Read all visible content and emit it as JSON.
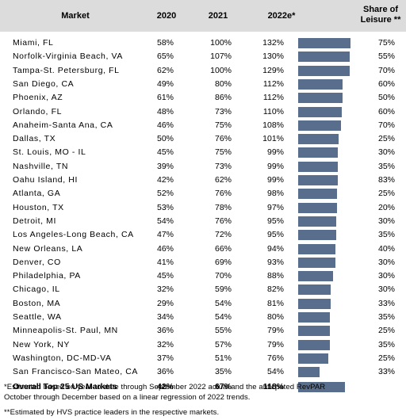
{
  "header": {
    "market": "Market",
    "y2020": "2020",
    "y2021": "2021",
    "y2022": "2022e*",
    "share_line1": "Share of",
    "share_line2": "Leisure **"
  },
  "colors": {
    "bar": "#596e8c",
    "header_bg": "#dcdcdc"
  },
  "chart_data": {
    "type": "table",
    "columns": [
      "Market",
      "2020",
      "2021",
      "2022e*",
      "Share of Leisure **"
    ],
    "bar_max": 132,
    "rows": [
      {
        "market": "Miami, FL",
        "y2020": "58%",
        "y2021": "100%",
        "y2022": "132%",
        "v2022": 132,
        "share": "75%"
      },
      {
        "market": "Norfolk-Virginia Beach, VA",
        "y2020": "65%",
        "y2021": "107%",
        "y2022": "130%",
        "v2022": 130,
        "share": "55%"
      },
      {
        "market": "Tampa-St. Petersburg, FL",
        "y2020": "62%",
        "y2021": "100%",
        "y2022": "129%",
        "v2022": 129,
        "share": "70%"
      },
      {
        "market": "San Diego, CA",
        "y2020": "49%",
        "y2021": "80%",
        "y2022": "112%",
        "v2022": 112,
        "share": "60%"
      },
      {
        "market": "Phoenix, AZ",
        "y2020": "61%",
        "y2021": "86%",
        "y2022": "112%",
        "v2022": 112,
        "share": "50%"
      },
      {
        "market": "Orlando, FL",
        "y2020": "48%",
        "y2021": "73%",
        "y2022": "110%",
        "v2022": 110,
        "share": "60%"
      },
      {
        "market": "Anaheim-Santa Ana, CA",
        "y2020": "46%",
        "y2021": "75%",
        "y2022": "108%",
        "v2022": 108,
        "share": "70%"
      },
      {
        "market": "Dallas, TX",
        "y2020": "50%",
        "y2021": "76%",
        "y2022": "101%",
        "v2022": 101,
        "share": "25%"
      },
      {
        "market": "St. Louis, MO - IL",
        "y2020": "45%",
        "y2021": "75%",
        "y2022": "99%",
        "v2022": 99,
        "share": "30%"
      },
      {
        "market": "Nashville, TN",
        "y2020": "39%",
        "y2021": "73%",
        "y2022": "99%",
        "v2022": 99,
        "share": "35%"
      },
      {
        "market": "Oahu Island, HI",
        "y2020": "42%",
        "y2021": "62%",
        "y2022": "99%",
        "v2022": 99,
        "share": "83%"
      },
      {
        "market": "Atlanta, GA",
        "y2020": "52%",
        "y2021": "76%",
        "y2022": "98%",
        "v2022": 98,
        "share": "25%"
      },
      {
        "market": "Houston, TX",
        "y2020": "53%",
        "y2021": "78%",
        "y2022": "97%",
        "v2022": 97,
        "share": "20%"
      },
      {
        "market": "Detroit, MI",
        "y2020": "54%",
        "y2021": "76%",
        "y2022": "95%",
        "v2022": 95,
        "share": "30%"
      },
      {
        "market": "Los Angeles-Long Beach, CA",
        "y2020": "47%",
        "y2021": "72%",
        "y2022": "95%",
        "v2022": 95,
        "share": "35%"
      },
      {
        "market": "New Orleans, LA",
        "y2020": "46%",
        "y2021": "66%",
        "y2022": "94%",
        "v2022": 94,
        "share": "40%"
      },
      {
        "market": "Denver, CO",
        "y2020": "41%",
        "y2021": "69%",
        "y2022": "93%",
        "v2022": 93,
        "share": "30%"
      },
      {
        "market": "Philadelphia, PA",
        "y2020": "45%",
        "y2021": "70%",
        "y2022": "88%",
        "v2022": 88,
        "share": "30%"
      },
      {
        "market": "Chicago, IL",
        "y2020": "32%",
        "y2021": "59%",
        "y2022": "82%",
        "v2022": 82,
        "share": "30%"
      },
      {
        "market": "Boston, MA",
        "y2020": "29%",
        "y2021": "54%",
        "y2022": "81%",
        "v2022": 81,
        "share": "33%"
      },
      {
        "market": "Seattle, WA",
        "y2020": "34%",
        "y2021": "54%",
        "y2022": "80%",
        "v2022": 80,
        "share": "35%"
      },
      {
        "market": "Minneapolis-St. Paul, MN",
        "y2020": "36%",
        "y2021": "55%",
        "y2022": "79%",
        "v2022": 79,
        "share": "25%"
      },
      {
        "market": "New York, NY",
        "y2020": "32%",
        "y2021": "57%",
        "y2022": "79%",
        "v2022": 79,
        "share": "35%"
      },
      {
        "market": "Washington, DC-MD-VA",
        "y2020": "37%",
        "y2021": "51%",
        "y2022": "76%",
        "v2022": 76,
        "share": "25%"
      },
      {
        "market": "San Francisco-San Mateo, CA",
        "y2020": "36%",
        "y2021": "35%",
        "y2022": "54%",
        "v2022": 54,
        "share": "33%"
      }
    ],
    "total": {
      "market": "Overall Top 25 US Markets",
      "y2020": "42%",
      "y2021": "67%",
      "y2022": "118%",
      "v2022": 118,
      "share": ""
    }
  },
  "footnotes": {
    "line1": "*Estimated based on year-to-date through September 2022 actual and the anticpated RevPAR",
    "line2": "October through December based on a linear regression of 2022 trends.",
    "line3": "**Estimated by HVS practice leaders in the respective markets."
  }
}
